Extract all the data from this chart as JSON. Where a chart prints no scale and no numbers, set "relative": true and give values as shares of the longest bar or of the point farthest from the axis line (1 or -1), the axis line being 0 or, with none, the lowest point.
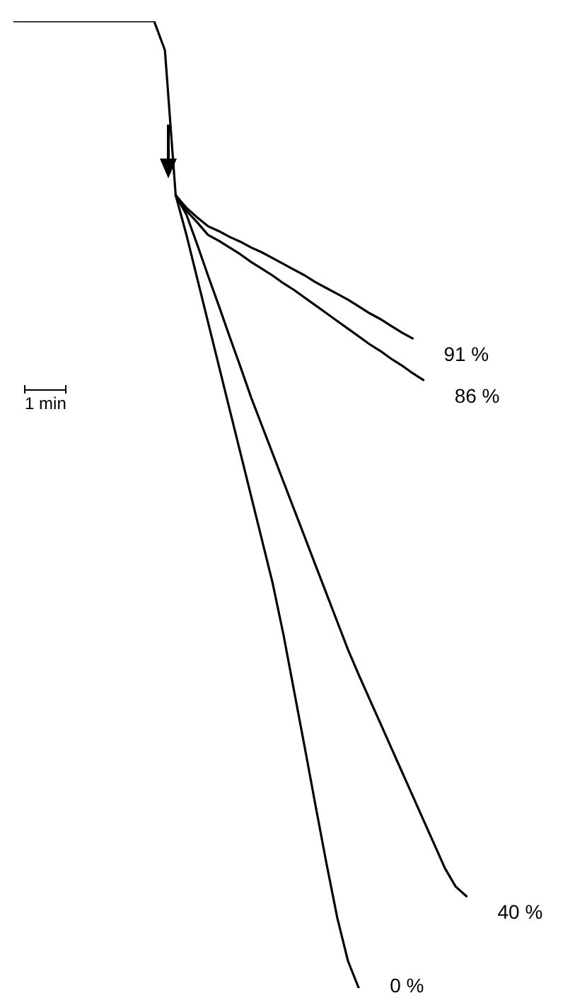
{
  "chart_data": {
    "type": "line",
    "relative": true,
    "line_style": "solid",
    "marker": "none",
    "legend": false,
    "annotations": [
      "1 min"
    ],
    "categories": [
      null,
      null,
      null,
      null,
      null,
      null,
      null,
      null,
      null,
      null,
      null,
      null,
      null,
      null,
      null,
      null,
      null,
      null,
      null,
      null,
      null,
      null,
      null,
      null,
      null,
      null,
      null,
      null,
      null,
      null,
      null,
      null,
      null,
      null,
      null,
      null,
      null,
      null,
      null,
      null,
      null,
      null,
      null,
      null,
      null
    ],
    "series": [
      {
        "name": "91 %",
        "color": "#000000",
        "values": [
          null,
          null,
          null,
          null,
          null,
          null,
          null,
          null,
          null,
          null,
          null,
          null,
          null,
          null,
          null,
          0.82,
          0.807,
          0.797,
          0.788,
          0.783,
          0.777,
          0.772,
          0.766,
          0.761,
          0.755,
          0.749,
          0.743,
          0.737,
          0.73,
          0.724,
          0.718,
          0.712,
          0.705,
          0.698,
          0.692,
          0.685,
          0.678,
          0.672,
          null,
          null,
          null,
          null,
          null,
          null,
          null
        ]
      },
      {
        "name": "86 %",
        "color": "#000000",
        "values": [
          null,
          null,
          null,
          null,
          null,
          null,
          null,
          null,
          null,
          null,
          null,
          null,
          null,
          null,
          null,
          0.82,
          0.804,
          0.792,
          0.779,
          0.773,
          0.766,
          0.759,
          0.751,
          0.744,
          0.737,
          0.729,
          0.722,
          0.714,
          0.706,
          0.698,
          0.69,
          0.682,
          0.674,
          0.666,
          0.659,
          0.651,
          0.644,
          0.636,
          0.629,
          null,
          null,
          null,
          null,
          null,
          null
        ]
      },
      {
        "name": "40 %",
        "color": "#000000",
        "values": [
          null,
          null,
          null,
          null,
          null,
          null,
          null,
          null,
          null,
          null,
          null,
          null,
          null,
          null,
          null,
          0.82,
          0.8,
          0.769,
          0.737,
          0.706,
          0.674,
          0.643,
          0.611,
          0.582,
          0.553,
          0.524,
          0.495,
          0.466,
          0.437,
          0.408,
          0.379,
          0.35,
          0.324,
          0.299,
          0.274,
          0.249,
          0.224,
          0.199,
          0.174,
          0.149,
          0.124,
          0.105,
          0.095,
          null,
          null
        ]
      },
      {
        "name": "0 %",
        "color": "#000000",
        "values": [
          1,
          1,
          1,
          1,
          1,
          1,
          1,
          1,
          1,
          1,
          1,
          1,
          1,
          1,
          0.97,
          0.82,
          0.779,
          0.734,
          0.689,
          0.644,
          0.599,
          0.554,
          0.509,
          0.464,
          0.419,
          0.366,
          0.307,
          0.248,
          0.188,
          0.129,
          0.073,
          0.028,
          0,
          null,
          null,
          null,
          null,
          null,
          null,
          null,
          null,
          null,
          null,
          null,
          null
        ]
      }
    ]
  }
}
